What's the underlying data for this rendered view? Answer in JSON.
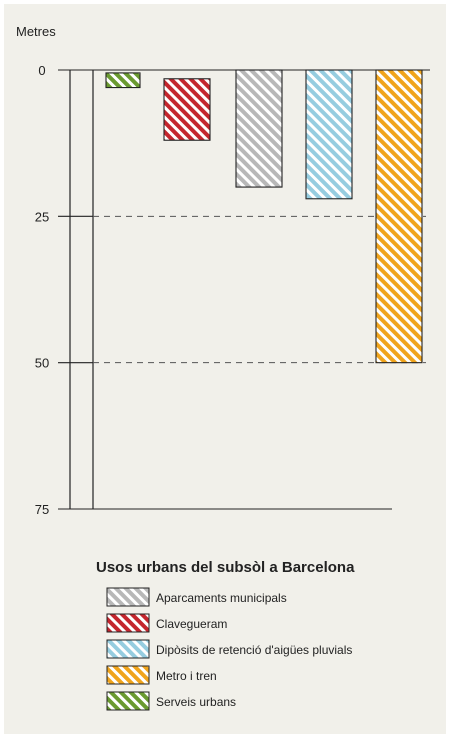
{
  "chart_data": {
    "type": "bar",
    "orientation": "vertical-downward",
    "ylabel": "Metres",
    "ylim": [
      0,
      75
    ],
    "yticks": [
      "0",
      "25",
      "50",
      "75"
    ],
    "grid": "dashed at 25 and 50",
    "legend_title": "Usos urbans del subsòl a Barcelona",
    "bars": [
      {
        "name": "Serveis urbans",
        "top": 0.5,
        "bottom": 3,
        "color": "#6a9a30"
      },
      {
        "name": "Clavegueram",
        "top": 1.5,
        "bottom": 12,
        "color": "#c4262e"
      },
      {
        "name": "Aparcaments municipals",
        "top": 0,
        "bottom": 20,
        "color": "#b8b8b8"
      },
      {
        "name": "Dipòsits de retenció d'aigües pluvials",
        "top": 0,
        "bottom": 22,
        "color": "#96cde0"
      },
      {
        "name": "Metro i tren",
        "top": 0,
        "bottom": 50,
        "color": "#f0a41c"
      }
    ],
    "legend": [
      {
        "label": "Aparcaments municipals",
        "color": "#b8b8b8"
      },
      {
        "label": "Clavegueram",
        "color": "#c4262e"
      },
      {
        "label": "Dipòsits de retenció d'aigües pluvials",
        "color": "#96cde0"
      },
      {
        "label": "Metro i tren",
        "color": "#f0a41c"
      },
      {
        "label": "Serveis urbans",
        "color": "#6a9a30"
      }
    ]
  }
}
